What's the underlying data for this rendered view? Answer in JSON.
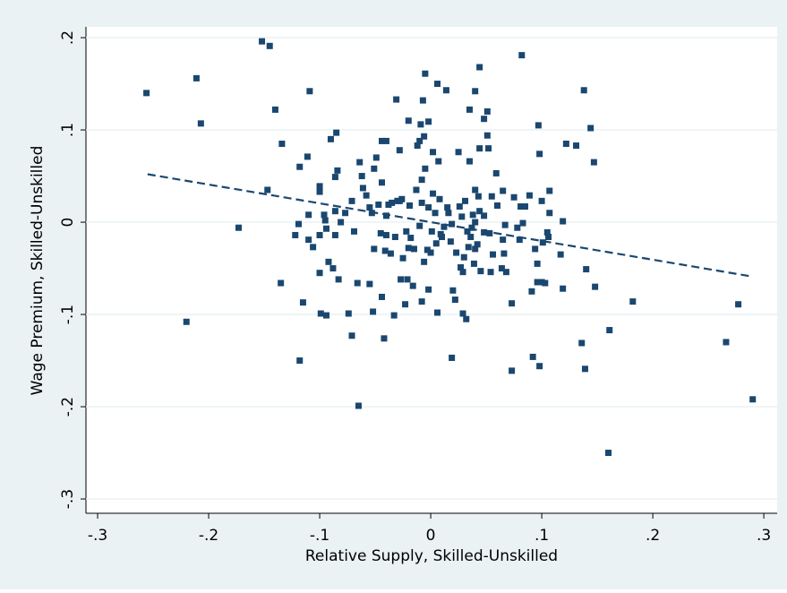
{
  "chart_data": {
    "type": "scatter",
    "x_label": "Relative Supply, Skilled-Unskilled",
    "y_label": "Wage Premium, Skilled-Unskilled",
    "xlim": [
      -0.3105,
      0.312
    ],
    "ylim": [
      -0.3155,
      0.2117
    ],
    "xticks": [
      {
        "value": -0.3,
        "label": "-.3"
      },
      {
        "value": -0.2,
        "label": "-.2"
      },
      {
        "value": -0.1,
        "label": "-.1"
      },
      0,
      {
        "value": 0.1,
        "label": ".1"
      },
      {
        "value": 0.2,
        "label": ".2"
      },
      {
        "value": 0.3,
        "label": ".3"
      }
    ],
    "yticks": [
      {
        "value": -0.3,
        "label": "-.3"
      },
      {
        "value": -0.2,
        "label": "-.2"
      },
      {
        "value": -0.1,
        "label": "-.1"
      },
      0,
      {
        "value": 0.1,
        "label": ".1"
      },
      {
        "value": 0.2,
        "label": ".2"
      }
    ],
    "grid": true,
    "color": "#1a476f",
    "x": [
      -0.256,
      -0.211,
      -0.207,
      -0.22,
      -0.173,
      -0.152,
      -0.145,
      -0.14,
      -0.147,
      -0.134,
      -0.135,
      -0.109,
      -0.111,
      -0.118,
      -0.119,
      -0.122,
      -0.115,
      -0.118,
      -0.11,
      -0.11,
      -0.106,
      -0.1,
      -0.1,
      -0.1,
      -0.1,
      -0.099,
      -0.094,
      -0.096,
      -0.095,
      -0.094,
      -0.092,
      -0.09,
      -0.088,
      -0.086,
      -0.085,
      -0.084,
      -0.086,
      -0.083,
      -0.081,
      -0.086,
      -0.077,
      -0.074,
      -0.071,
      -0.071,
      -0.069,
      -0.066,
      -0.065,
      -0.064,
      -0.062,
      -0.061,
      -0.058,
      -0.055,
      -0.053,
      -0.055,
      -0.052,
      -0.051,
      -0.051,
      -0.049,
      -0.047,
      -0.045,
      -0.044,
      -0.044,
      -0.04,
      -0.042,
      -0.044,
      -0.041,
      -0.04,
      -0.04,
      -0.038,
      -0.036,
      -0.035,
      -0.033,
      -0.032,
      -0.031,
      -0.03,
      -0.028,
      -0.028,
      -0.026,
      -0.027,
      -0.025,
      -0.023,
      -0.022,
      -0.02,
      -0.02,
      -0.019,
      -0.021,
      -0.018,
      -0.015,
      -0.016,
      -0.013,
      -0.012,
      -0.01,
      -0.01,
      -0.009,
      -0.008,
      -0.007,
      -0.008,
      -0.008,
      -0.006,
      -0.006,
      -0.005,
      -0.005,
      -0.003,
      -0.002,
      -0.002,
      -0.002,
      0.0,
      0.001,
      0.002,
      0.002,
      0.004,
      0.005,
      0.006,
      0.006,
      0.007,
      0.008,
      0.009,
      0.01,
      0.012,
      0.014,
      0.015,
      0.016,
      0.018,
      0.019,
      0.019,
      0.02,
      0.022,
      0.023,
      0.025,
      0.026,
      0.027,
      0.028,
      0.029,
      0.029,
      0.03,
      0.031,
      0.032,
      0.033,
      0.034,
      0.035,
      0.035,
      0.036,
      0.037,
      0.038,
      0.039,
      0.04,
      0.04,
      0.04,
      0.04,
      0.042,
      0.043,
      0.044,
      0.044,
      0.044,
      0.045,
      0.048,
      0.048,
      0.048,
      0.051,
      0.051,
      0.052,
      0.053,
      0.054,
      0.055,
      0.056,
      0.059,
      0.06,
      0.064,
      0.065,
      0.065,
      0.066,
      0.067,
      0.068,
      0.073,
      0.073,
      0.075,
      0.078,
      0.08,
      0.081,
      0.082,
      0.083,
      0.085,
      0.089,
      0.091,
      0.092,
      0.094,
      0.096,
      0.097,
      0.096,
      0.098,
      0.098,
      0.1,
      0.1,
      0.101,
      0.103,
      0.105,
      0.106,
      0.107,
      0.107,
      0.117,
      0.119,
      0.119,
      0.122,
      0.131,
      0.136,
      0.138,
      0.139,
      0.14,
      0.144,
      0.147,
      0.148,
      0.161,
      0.16,
      0.182,
      0.266,
      0.277,
      0.29
    ],
    "y": [
      0.14,
      0.156,
      0.107,
      -0.108,
      -0.006,
      0.196,
      0.191,
      0.122,
      0.035,
      0.085,
      -0.066,
      0.142,
      0.071,
      0.06,
      -0.002,
      -0.014,
      -0.087,
      -0.15,
      0.008,
      -0.019,
      -0.027,
      0.039,
      0.033,
      -0.014,
      -0.055,
      -0.099,
      -0.101,
      0.008,
      0.002,
      -0.007,
      -0.043,
      0.09,
      -0.05,
      0.049,
      0.097,
      0.056,
      -0.014,
      -0.062,
      0.0,
      0.012,
      0.01,
      -0.099,
      -0.123,
      0.023,
      -0.01,
      -0.066,
      -0.199,
      0.065,
      0.05,
      0.037,
      0.029,
      0.016,
      0.01,
      -0.067,
      -0.097,
      -0.029,
      0.058,
      0.07,
      0.019,
      -0.012,
      0.043,
      0.088,
      0.088,
      -0.126,
      -0.081,
      -0.031,
      -0.014,
      0.007,
      0.019,
      -0.034,
      0.021,
      -0.101,
      -0.016,
      0.133,
      0.023,
      0.078,
      0.023,
      0.025,
      -0.062,
      -0.039,
      -0.089,
      -0.01,
      0.11,
      -0.028,
      0.018,
      -0.062,
      -0.017,
      -0.029,
      -0.069,
      0.035,
      0.083,
      -0.004,
      0.088,
      0.106,
      0.046,
      0.132,
      0.021,
      -0.086,
      -0.043,
      0.093,
      0.161,
      0.058,
      -0.03,
      0.109,
      0.016,
      -0.073,
      -0.033,
      -0.01,
      0.031,
      0.076,
      0.01,
      -0.023,
      0.15,
      -0.098,
      0.066,
      0.025,
      -0.013,
      -0.016,
      -0.005,
      0.143,
      0.016,
      0.01,
      -0.021,
      -0.002,
      -0.147,
      -0.074,
      -0.084,
      -0.033,
      0.076,
      0.017,
      -0.049,
      0.006,
      -0.099,
      -0.054,
      -0.038,
      0.023,
      -0.105,
      -0.01,
      -0.027,
      0.122,
      0.066,
      -0.016,
      -0.006,
      0.008,
      -0.045,
      0.035,
      -0.029,
      0.142,
      0.0,
      -0.024,
      0.028,
      0.08,
      0.168,
      0.012,
      -0.053,
      0.007,
      0.112,
      -0.011,
      0.12,
      0.094,
      0.08,
      -0.012,
      -0.054,
      0.028,
      -0.035,
      0.053,
      0.018,
      -0.05,
      0.034,
      -0.019,
      -0.034,
      -0.003,
      -0.054,
      -0.088,
      -0.161,
      0.027,
      -0.006,
      -0.019,
      0.017,
      0.181,
      -0.001,
      0.017,
      0.029,
      -0.075,
      -0.146,
      -0.029,
      -0.045,
      0.105,
      -0.065,
      -0.156,
      0.074,
      0.023,
      -0.065,
      -0.022,
      -0.066,
      -0.011,
      -0.016,
      0.034,
      0.01,
      -0.035,
      -0.072,
      0.001,
      0.085,
      0.083,
      -0.131,
      0.143,
      -0.159,
      -0.051,
      0.102,
      0.065,
      -0.07,
      -0.117,
      -0.25,
      -0.086,
      -0.13,
      -0.089,
      -0.192
    ],
    "fit_line": {
      "x": [
        -0.255,
        0.29
      ],
      "y": [
        0.052,
        -0.059
      ],
      "color": "#1a476f",
      "dashed": true
    }
  }
}
